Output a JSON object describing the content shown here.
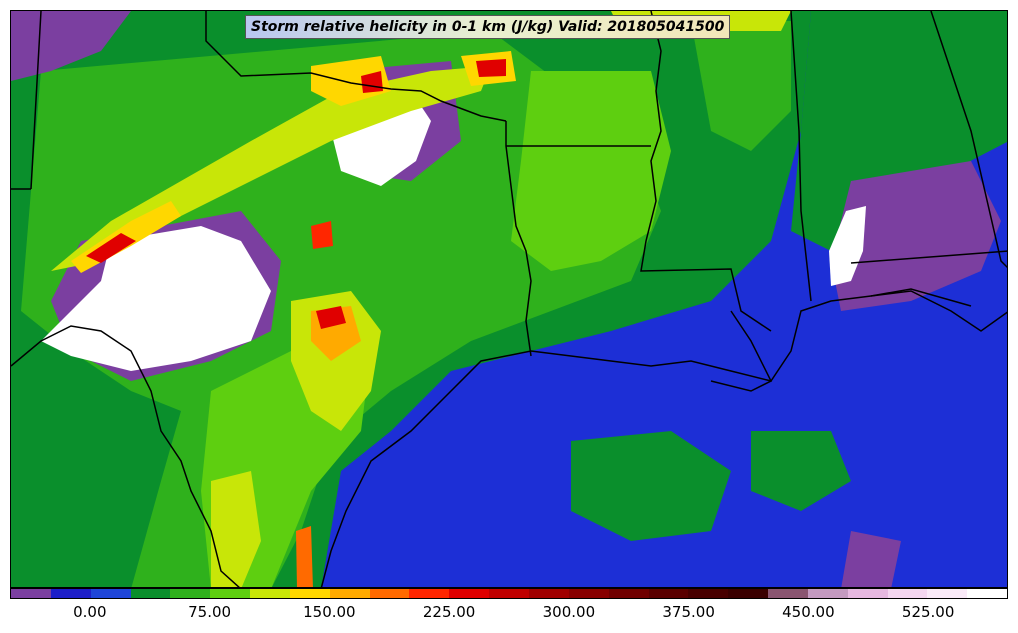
{
  "title": "Storm relative helicity in 0-1 km (J/kg) Valid: 201805041500",
  "colorbar": {
    "colors": [
      "#7b3fa0",
      "#1d1ec8",
      "#1e45d8",
      "#0a8f2c",
      "#2fb11c",
      "#5ecf10",
      "#c8e608",
      "#ffd700",
      "#ffaa00",
      "#ff6a00",
      "#ff2600",
      "#e00000",
      "#c00000",
      "#a00000",
      "#880000",
      "#700000",
      "#5a0000",
      "#480000",
      "#3a0000",
      "#8a5570",
      "#c49ac0",
      "#e6b8e0",
      "#f4d6f0",
      "#faeaf8",
      "#ffffff"
    ],
    "tick_labels": [
      "0.00",
      "75.00",
      "150.00",
      "225.00",
      "300.00",
      "375.00",
      "450.00",
      "525.00"
    ],
    "tick_positions": [
      2,
      5,
      8,
      11,
      14,
      17,
      20,
      23
    ]
  },
  "field_colors": {
    "purple": "#7b3fa0",
    "blue": "#1d2fd6",
    "green_dark": "#0a8f2c",
    "green": "#2fb11c",
    "green_light": "#5ecf10",
    "yellow_green": "#c8e608",
    "yellow": "#ffd700",
    "orange": "#ff6a00",
    "red": "#e00000",
    "white": "#ffffff"
  }
}
